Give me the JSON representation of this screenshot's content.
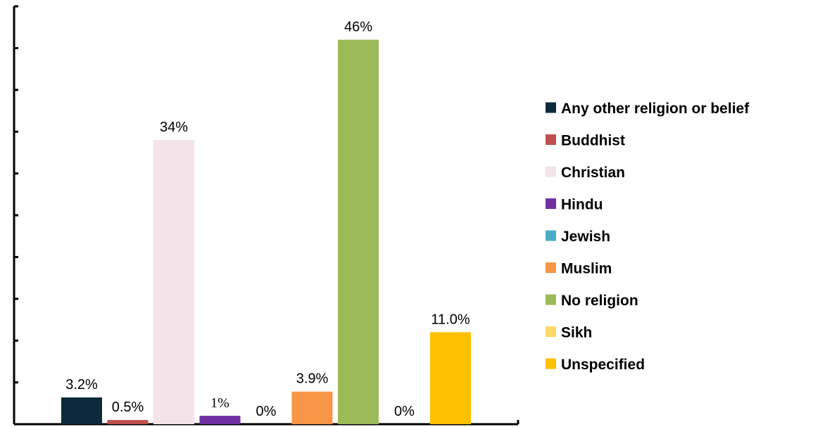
{
  "chart_data": {
    "type": "bar",
    "title": "",
    "xlabel": "",
    "ylabel": "",
    "ylim": [
      0,
      50
    ],
    "grid": false,
    "legend_position": "right",
    "series": [
      {
        "name": "Any other religion or belief",
        "value": 3.2,
        "label": "3.2%",
        "color": "#0d2a3c"
      },
      {
        "name": "Buddhist",
        "value": 0.5,
        "label": "0.5%",
        "color": "#c0504d"
      },
      {
        "name": "Christian",
        "value": 34,
        "label": "34%",
        "color": "#f2e4e8"
      },
      {
        "name": "Hindu",
        "value": 1,
        "label": "1%",
        "color": "#7030a0"
      },
      {
        "name": "Jewish",
        "value": 0,
        "label": "0%",
        "color": "#4bacc6"
      },
      {
        "name": "Muslim",
        "value": 3.9,
        "label": "3.9%",
        "color": "#f79646"
      },
      {
        "name": "No religion",
        "value": 46,
        "label": "46%",
        "color": "#9bbb59"
      },
      {
        "name": "Sikh",
        "value": 0,
        "label": "0%",
        "color": "#ffd966"
      },
      {
        "name": "Unspecified",
        "value": 11.0,
        "label": "11.0%",
        "color": "#ffc000"
      }
    ]
  }
}
